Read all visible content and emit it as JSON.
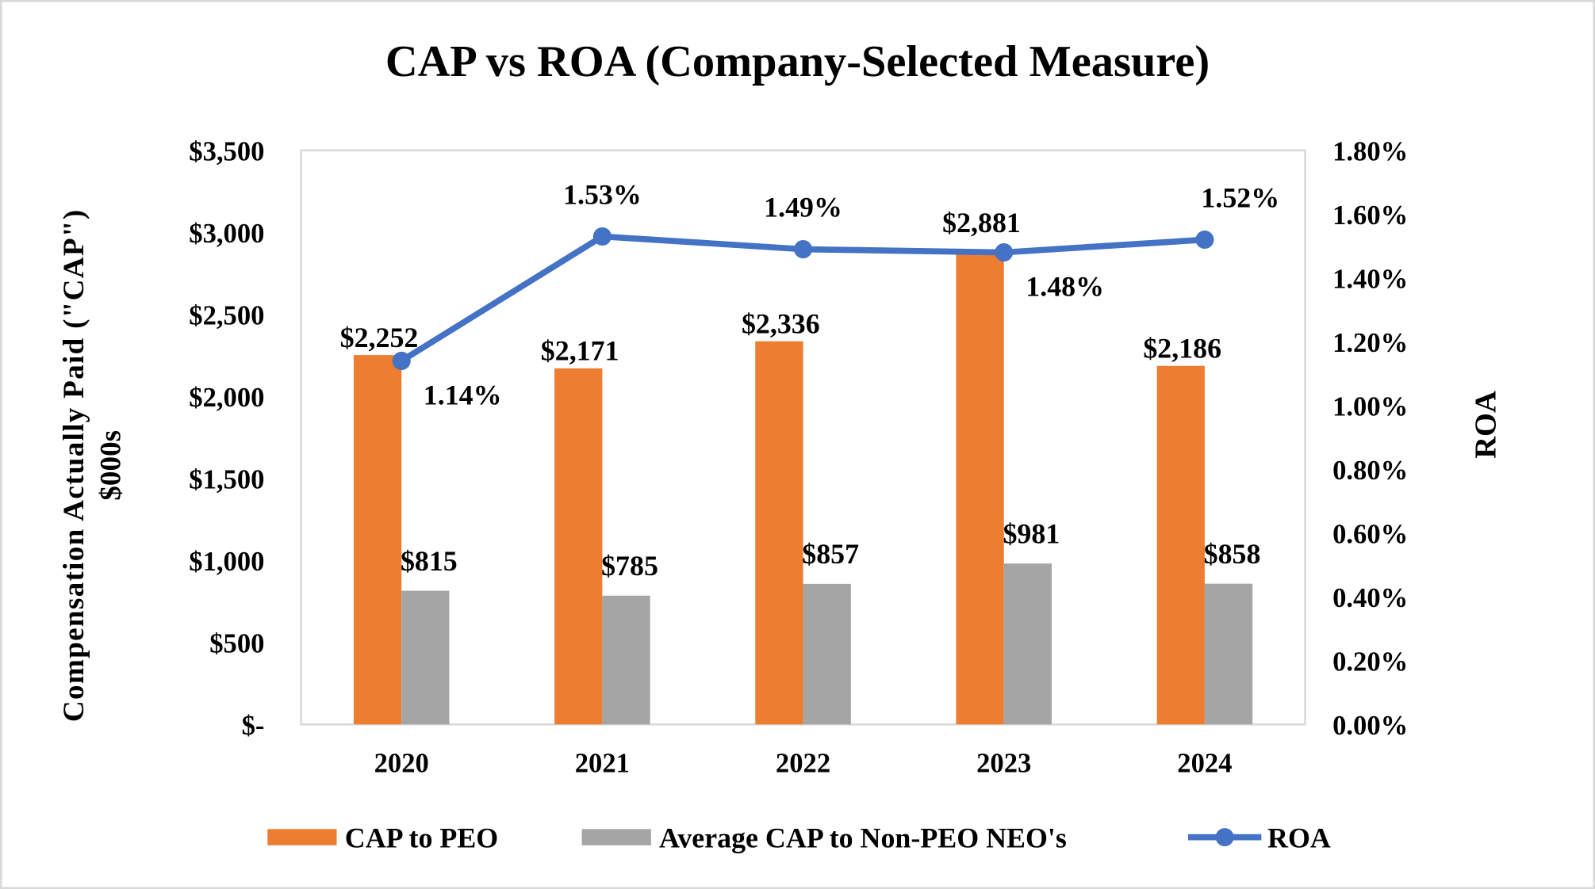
{
  "chart_data": {
    "type": "bar+line",
    "title": "CAP vs ROA (Company-Selected Measure)",
    "ylabel": "Compensation  Actually  Paid (\"CAP\") $000s",
    "ylabel_lines": [
      "Compensation  Actually  Paid (\"CAP\")",
      "$000s"
    ],
    "y2label": "ROA",
    "categories": [
      "2020",
      "2021",
      "2022",
      "2023",
      "2024"
    ],
    "ylim": [
      0,
      3500
    ],
    "y_ticks": [
      "$-",
      "$500",
      "$1,000",
      "$1,500",
      "$2,000",
      "$2,500",
      "$3,000",
      "$3,500"
    ],
    "y2lim": [
      0,
      1.8
    ],
    "y2_ticks": [
      "0.00%",
      "0.20%",
      "0.40%",
      "0.60%",
      "0.80%",
      "1.00%",
      "1.20%",
      "1.40%",
      "1.60%",
      "1.80%"
    ],
    "grid": false,
    "legend_position": "bottom",
    "series": [
      {
        "name": "CAP to PEO",
        "type": "bar",
        "axis": "left",
        "color": "#ED7D31",
        "values": [
          2252,
          2171,
          2336,
          2881,
          2186
        ],
        "labels": [
          "$2,252",
          "$2,171",
          "$2,336",
          "$2,881",
          "$2,186"
        ]
      },
      {
        "name": "Average CAP to Non-PEO NEO's",
        "type": "bar",
        "axis": "left",
        "color": "#A5A5A5",
        "values": [
          815,
          785,
          857,
          981,
          858
        ],
        "labels": [
          "$815",
          "$785",
          "$857",
          "$981",
          "$858"
        ]
      },
      {
        "name": "ROA",
        "type": "line",
        "axis": "right",
        "color": "#4472C4",
        "values": [
          1.14,
          1.53,
          1.49,
          1.48,
          1.52
        ],
        "labels": [
          "1.14%",
          "1.53%",
          "1.49%",
          "1.48%",
          "1.52%"
        ]
      }
    ]
  }
}
